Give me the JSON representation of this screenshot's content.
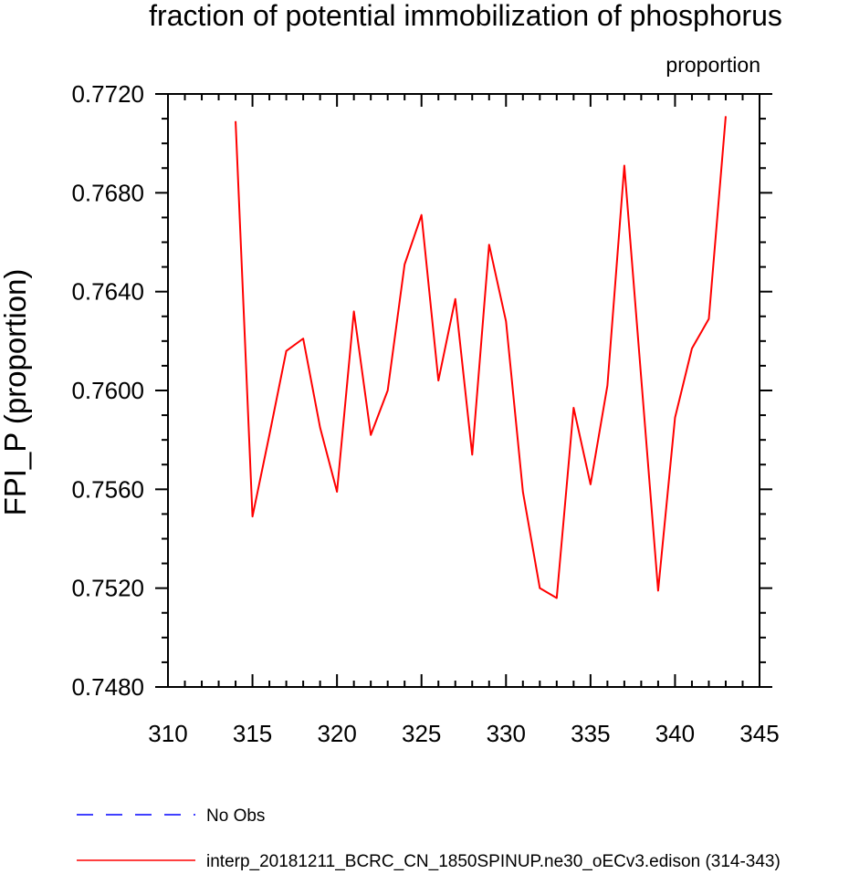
{
  "chart_data": {
    "type": "line",
    "title": "fraction of potential immobilization of phosphorus",
    "units_label": "proportion",
    "ylabel": "FPI_P  (proportion)",
    "xlabel": "",
    "xlim": [
      310,
      345
    ],
    "ylim": [
      0.748,
      0.772
    ],
    "x_ticks": [
      "310",
      "315",
      "320",
      "325",
      "330",
      "335",
      "340",
      "345"
    ],
    "y_ticks": [
      "0.7480",
      "0.7520",
      "0.7560",
      "0.7600",
      "0.7640",
      "0.7680",
      "0.7720"
    ],
    "colors": {
      "series": "#ff0000",
      "obs": "#0000ff"
    },
    "series": [
      {
        "name": "interp_20181211_BCRC_CN_1850SPINUP.ne30_oECv3.edison (314-343)",
        "x": [
          314,
          315,
          316,
          317,
          318,
          319,
          320,
          321,
          322,
          323,
          324,
          325,
          326,
          327,
          328,
          329,
          330,
          331,
          332,
          333,
          334,
          335,
          336,
          337,
          338,
          339,
          340,
          341,
          342,
          343
        ],
        "values": [
          0.7709,
          0.7549,
          0.7582,
          0.7616,
          0.7621,
          0.7585,
          0.7559,
          0.7632,
          0.7582,
          0.76,
          0.7651,
          0.7671,
          0.7604,
          0.7637,
          0.7574,
          0.7659,
          0.7628,
          0.7559,
          0.752,
          0.7516,
          0.7593,
          0.7562,
          0.7602,
          0.7691,
          0.7605,
          0.7519,
          0.7589,
          0.7617,
          0.7629,
          0.7711
        ]
      }
    ],
    "legend": [
      {
        "label": "No Obs",
        "style": "dashed",
        "color": "#0000ff"
      },
      {
        "label": "interp_20181211_BCRC_CN_1850SPINUP.ne30_oECv3.edison (314-343)",
        "style": "solid",
        "color": "#ff0000"
      }
    ]
  }
}
